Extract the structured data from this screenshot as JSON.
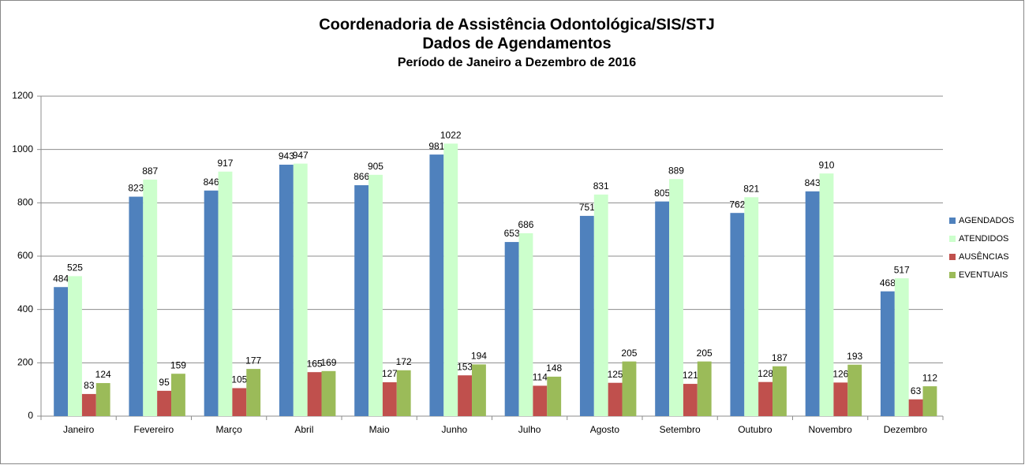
{
  "chart_data": {
    "type": "bar",
    "title": [
      "Coordenadoria de Assistência Odontológica/SIS/STJ",
      "Dados de Agendamentos",
      "Período de Janeiro a Dezembro de 2016"
    ],
    "categories": [
      "Janeiro",
      "Fevereiro",
      "Março",
      "Abril",
      "Maio",
      "Junho",
      "Julho",
      "Agosto",
      "Setembro",
      "Outubro",
      "Novembro",
      "Dezembro"
    ],
    "series": [
      {
        "name": "AGENDADOS",
        "color": "#4f81bd",
        "values": [
          484,
          823,
          846,
          943,
          866,
          981,
          653,
          751,
          805,
          762,
          843,
          468
        ]
      },
      {
        "name": "ATENDIDOS",
        "color": "#ccffcc",
        "values": [
          525,
          887,
          917,
          947,
          905,
          1022,
          686,
          831,
          889,
          821,
          910,
          517
        ]
      },
      {
        "name": "AUSÊNCIAS",
        "color": "#c0504d",
        "values": [
          83,
          95,
          105,
          165,
          127,
          153,
          114,
          125,
          121,
          128,
          126,
          63
        ]
      },
      {
        "name": "EVENTUAIS",
        "color": "#9bbb59",
        "values": [
          124,
          159,
          177,
          169,
          172,
          194,
          148,
          205,
          205,
          187,
          193,
          112
        ]
      }
    ],
    "ylim": [
      0,
      1200
    ],
    "yticks": [
      0,
      200,
      400,
      600,
      800,
      1000,
      1200
    ],
    "grid": true,
    "legend": "right"
  }
}
